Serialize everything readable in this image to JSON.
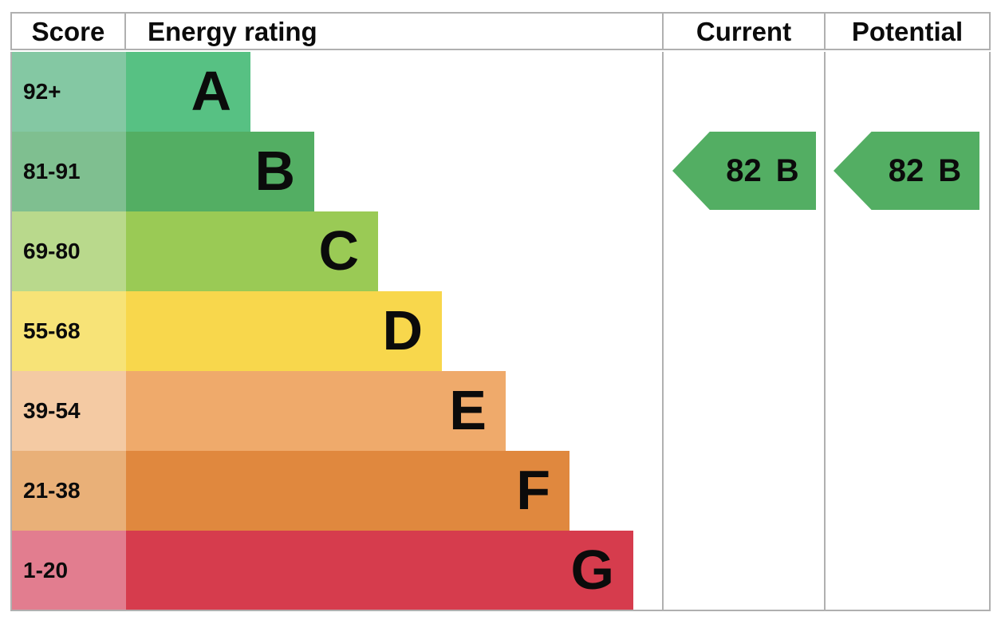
{
  "header": {
    "score": "Score",
    "energy_rating": "Energy rating",
    "current": "Current",
    "potential": "Potential"
  },
  "chart_data": {
    "type": "bar",
    "title": "Energy rating",
    "border_color": "#b0b0b0",
    "bands": [
      {
        "letter": "A",
        "score_range": "92+",
        "bar_color": "#57c183",
        "score_color": "#84c8a3"
      },
      {
        "letter": "B",
        "score_range": "81-91",
        "bar_color": "#53ae63",
        "score_color": "#7fbf90"
      },
      {
        "letter": "C",
        "score_range": "69-80",
        "bar_color": "#9aca55",
        "score_color": "#b9d98c"
      },
      {
        "letter": "D",
        "score_range": "55-68",
        "bar_color": "#f8d74c",
        "score_color": "#f7e377"
      },
      {
        "letter": "E",
        "score_range": "39-54",
        "bar_color": "#efaa6b",
        "score_color": "#f4caa3"
      },
      {
        "letter": "F",
        "score_range": "21-38",
        "bar_color": "#e0883e",
        "score_color": "#e9b078"
      },
      {
        "letter": "G",
        "score_range": "1-20",
        "bar_color": "#d63c4d",
        "score_color": "#e27d8f"
      }
    ],
    "current": {
      "score": "82",
      "band": "B",
      "arrow_color": "#53ae63"
    },
    "potential": {
      "score": "82",
      "band": "B",
      "arrow_color": "#53ae63"
    }
  }
}
